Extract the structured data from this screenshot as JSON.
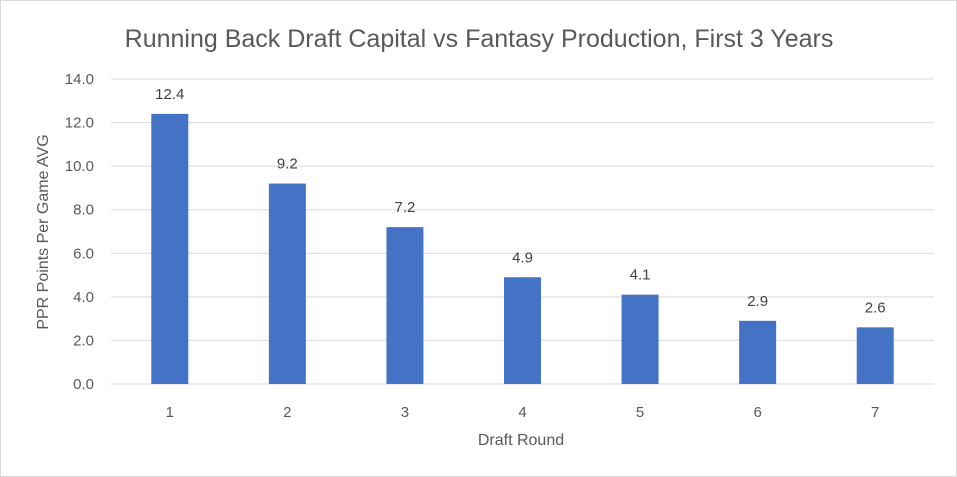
{
  "chart_data": {
    "type": "bar",
    "title": "Running Back Draft Capital vs Fantasy Production, First 3 Years",
    "xlabel": "Draft Round",
    "ylabel": "PPR Points Per Game AVG",
    "categories": [
      "1",
      "2",
      "3",
      "4",
      "5",
      "6",
      "7"
    ],
    "values": [
      12.4,
      9.2,
      7.2,
      4.9,
      4.1,
      2.9,
      2.6
    ],
    "data_labels": [
      "12.4",
      "9.2",
      "7.2",
      "4.9",
      "4.1",
      "2.9",
      "2.6"
    ],
    "ylim": [
      0,
      14
    ],
    "yticks": [
      "0.0",
      "2.0",
      "4.0",
      "6.0",
      "8.0",
      "10.0",
      "12.0",
      "14.0"
    ],
    "grid": true,
    "legend": "none",
    "bar_color": "#4472c4"
  }
}
